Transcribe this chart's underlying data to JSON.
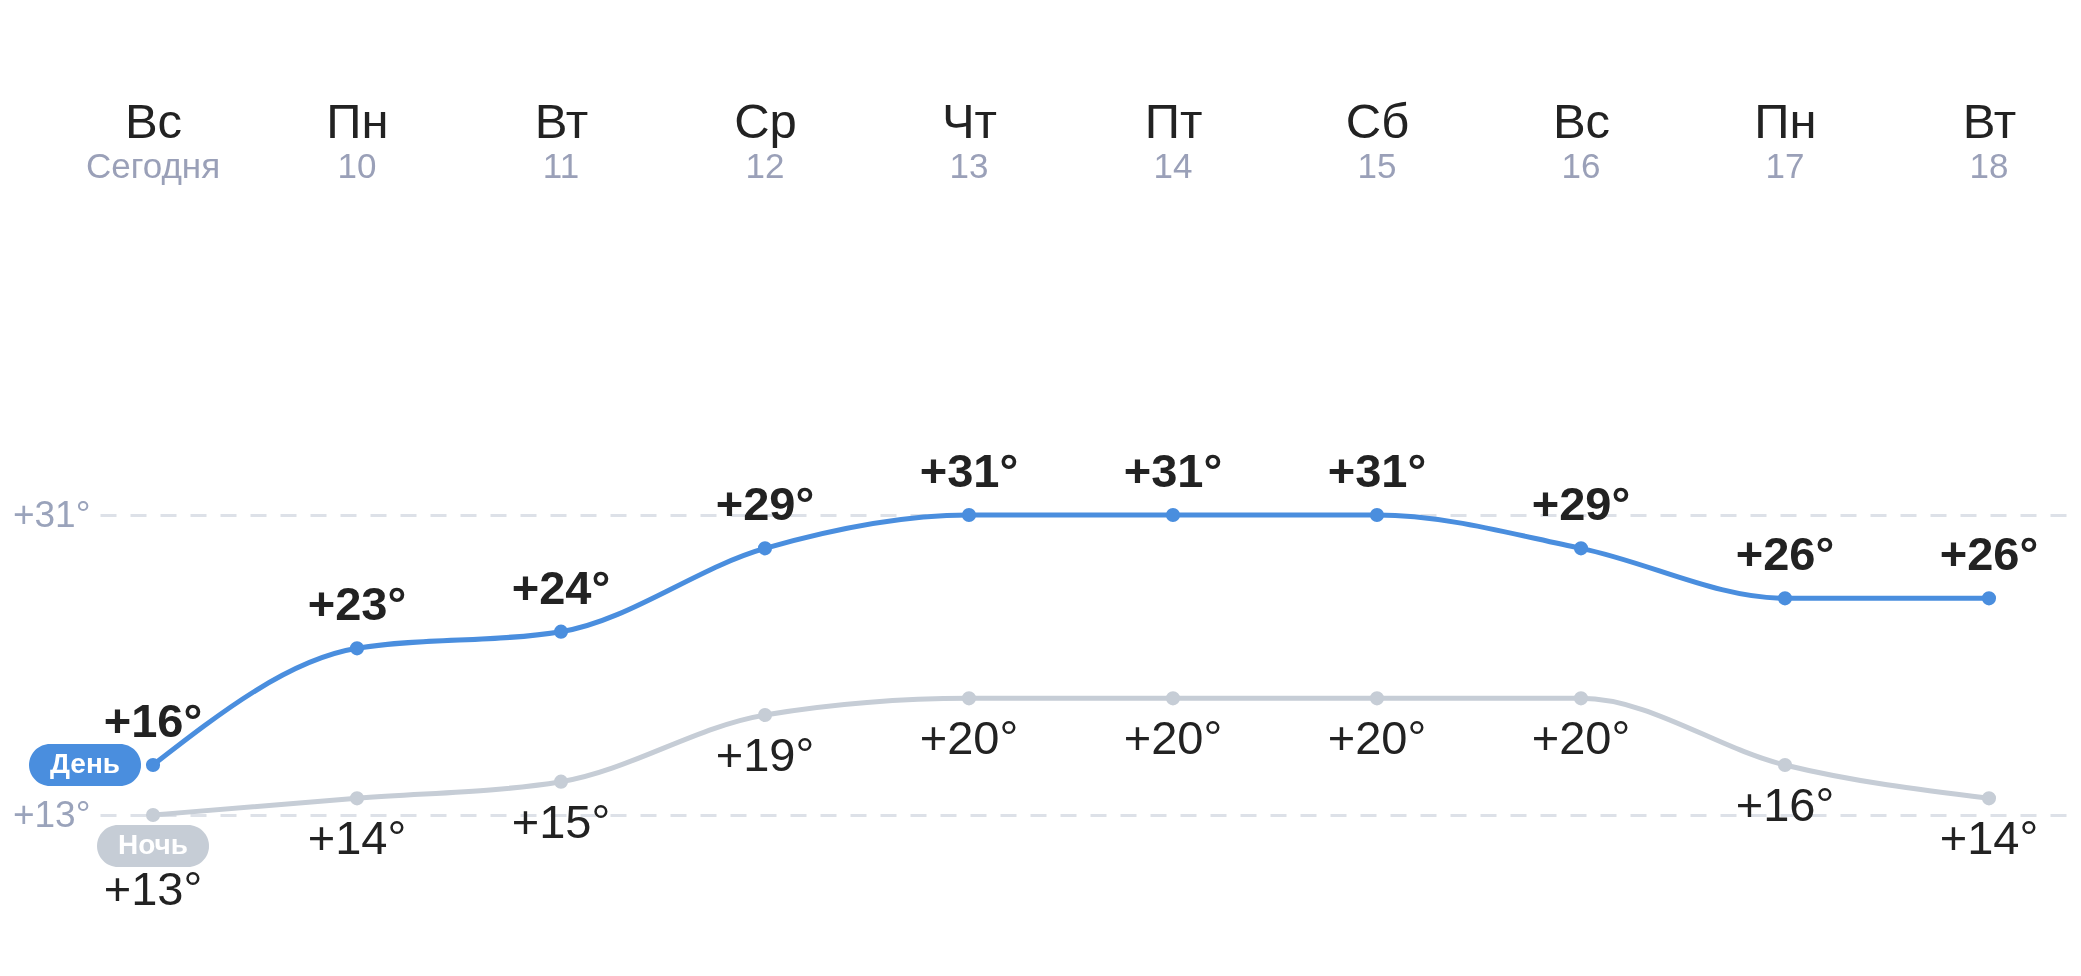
{
  "chart_data": {
    "type": "line",
    "categories": [
      "Вс\nСегодня",
      "Пн\n10",
      "Вт\n11",
      "Ср\n12",
      "Чт\n13",
      "Пт\n14",
      "Сб\n15",
      "Вс\n16",
      "Пн\n17",
      "Вт\n18"
    ],
    "series": [
      {
        "name": "День",
        "color": "#4a8ede",
        "values": [
          16,
          23,
          24,
          29,
          31,
          31,
          31,
          29,
          26,
          26
        ],
        "value_labels": [
          "+16°",
          "+23°",
          "+24°",
          "+29°",
          "+31°",
          "+31°",
          "+31°",
          "+29°",
          "+26°",
          "+26°"
        ]
      },
      {
        "name": "Ночь",
        "color": "#c6cdd6",
        "values": [
          13,
          14,
          15,
          19,
          20,
          20,
          20,
          20,
          16,
          14
        ],
        "value_labels": [
          "+13°",
          "+14°",
          "+15°",
          "+19°",
          "+20°",
          "+20°",
          "+20°",
          "+20°",
          "+16°",
          "+14°"
        ]
      }
    ],
    "ylim": [
      13,
      31
    ],
    "yticks": [
      {
        "value": 13,
        "label": "+13°"
      },
      {
        "value": 31,
        "label": "+31°"
      }
    ],
    "grid": "y",
    "marker": "circle",
    "line_style": "solid"
  }
}
